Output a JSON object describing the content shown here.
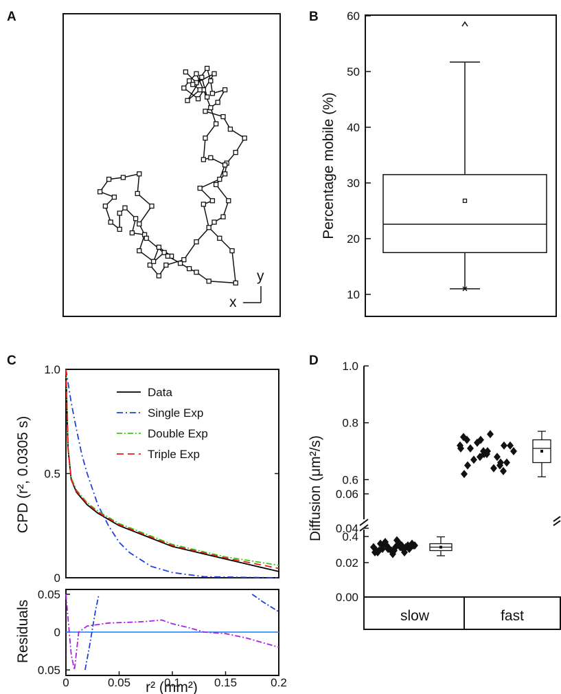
{
  "chart_data": [
    {
      "panel": "A",
      "type": "scatter",
      "scale_labels": {
        "x": "x",
        "y": "y"
      },
      "track": [
        [
          5.4,
          12.9
        ],
        [
          6.0,
          12.3
        ],
        [
          6.6,
          13.1
        ],
        [
          6.8,
          12.4
        ],
        [
          6.9,
          11.7
        ],
        [
          7.6,
          11.9
        ],
        [
          7.2,
          11.2
        ],
        [
          6.5,
          10.7
        ],
        [
          7.5,
          10.4
        ],
        [
          7.9,
          9.7
        ],
        [
          8.7,
          9.2
        ],
        [
          8.2,
          8.4
        ],
        [
          7.7,
          7.8
        ],
        [
          7.6,
          7.2
        ],
        [
          7.1,
          6.6
        ],
        [
          7.8,
          5.7
        ],
        [
          7.5,
          4.8
        ],
        [
          7.0,
          4.5
        ],
        [
          6.0,
          3.4
        ],
        [
          5.3,
          2.4
        ],
        [
          4.3,
          2.1
        ],
        [
          3.9,
          1.5
        ],
        [
          3.4,
          2.1
        ],
        [
          4.2,
          2.8
        ],
        [
          4.6,
          2.6
        ],
        [
          3.9,
          3.1
        ],
        [
          3.6,
          2.3
        ],
        [
          2.8,
          2.9
        ],
        [
          3.1,
          3.8
        ],
        [
          2.4,
          3.9
        ],
        [
          2.6,
          4.7
        ],
        [
          2.0,
          5.3
        ],
        [
          1.7,
          5.0
        ],
        [
          1.7,
          4.1
        ],
        [
          1.2,
          4.5
        ],
        [
          0.9,
          5.4
        ],
        [
          1.4,
          5.9
        ],
        [
          0.6,
          6.2
        ],
        [
          1.1,
          6.9
        ],
        [
          1.9,
          7.0
        ],
        [
          2.8,
          7.2
        ],
        [
          2.7,
          6.1
        ],
        [
          3.5,
          5.4
        ],
        [
          2.8,
          4.4
        ],
        [
          3.2,
          3.6
        ],
        [
          4.4,
          2.6
        ],
        [
          5.1,
          2.2
        ],
        [
          5.6,
          1.9
        ],
        [
          6.0,
          1.7
        ],
        [
          6.7,
          1.2
        ],
        [
          8.2,
          1.1
        ],
        [
          8.0,
          2.9
        ],
        [
          7.3,
          3.6
        ],
        [
          6.7,
          4.2
        ],
        [
          6.4,
          5.5
        ],
        [
          6.9,
          5.7
        ],
        [
          6.2,
          6.4
        ],
        [
          7.3,
          6.9
        ],
        [
          7.6,
          7.7
        ],
        [
          6.8,
          8.1
        ],
        [
          6.4,
          8.0
        ],
        [
          6.5,
          9.2
        ],
        [
          7.1,
          10.0
        ],
        [
          6.8,
          10.9
        ],
        [
          6.4,
          11.9
        ],
        [
          6.0,
          12.8
        ],
        [
          5.6,
          12.4
        ],
        [
          5.3,
          12.0
        ],
        [
          6.1,
          11.4
        ],
        [
          7.0,
          12.8
        ],
        [
          5.8,
          12.2
        ],
        [
          6.2,
          11.9
        ],
        [
          5.5,
          11.3
        ],
        [
          6.3,
          12.6
        ],
        [
          6.6,
          11.5
        ]
      ]
    },
    {
      "panel": "B",
      "type": "box",
      "ylabel": "Percentage mobile (%)",
      "ylim": [
        8,
        60
      ],
      "yticks": [
        10,
        20,
        30,
        40,
        50,
        60
      ],
      "box": {
        "whisker_low": 11.0,
        "q1": 17.5,
        "median": 22.6,
        "q3": 31.5,
        "whisker_high": 51.7,
        "mean": 26.8,
        "min": 11.0,
        "max": 58.5
      }
    },
    {
      "panel": "C",
      "type": "line",
      "ylabel": "CPD (r², 0.0305 s)",
      "residuals_ylabel": "Residuals",
      "xlabel": "r² (mm²)",
      "xlim": [
        0,
        0.2
      ],
      "ylim": [
        0,
        1.0
      ],
      "xticks": [
        "0",
        "0.05",
        "0.1",
        "0.15",
        "0.2"
      ],
      "yticks": [
        "0",
        "0.5",
        "1.0"
      ],
      "residual_yticks": [
        "0.05",
        "0",
        "0.05"
      ],
      "residual_ylim": [
        -0.05,
        0.05
      ],
      "series": [
        {
          "name": "Data",
          "color": "#000000",
          "x": [
            0,
            0.002,
            0.005,
            0.01,
            0.02,
            0.03,
            0.05,
            0.075,
            0.1,
            0.125,
            0.15,
            0.175,
            0.2
          ],
          "y": [
            1.0,
            0.62,
            0.47,
            0.41,
            0.35,
            0.31,
            0.25,
            0.2,
            0.15,
            0.12,
            0.09,
            0.06,
            0.03
          ]
        },
        {
          "name": "Single Exp",
          "color": "#1f3fdc",
          "x": [
            0,
            0.005,
            0.01,
            0.015,
            0.02,
            0.03,
            0.04,
            0.05,
            0.06,
            0.08,
            0.1,
            0.13,
            0.2
          ],
          "y": [
            1.0,
            0.84,
            0.71,
            0.59,
            0.5,
            0.35,
            0.25,
            0.17,
            0.12,
            0.055,
            0.025,
            0.005,
            0.0
          ]
        },
        {
          "name": "Double Exp",
          "color": "#33cc11",
          "x": [
            0,
            0.002,
            0.005,
            0.01,
            0.02,
            0.03,
            0.05,
            0.075,
            0.1,
            0.125,
            0.15,
            0.175,
            0.2
          ],
          "y": [
            1.0,
            0.63,
            0.48,
            0.42,
            0.36,
            0.32,
            0.26,
            0.21,
            0.16,
            0.13,
            0.1,
            0.08,
            0.06
          ]
        },
        {
          "name": "Triple Exp",
          "color": "#ee1a1a",
          "x": [
            0,
            0.002,
            0.005,
            0.01,
            0.02,
            0.03,
            0.05,
            0.075,
            0.1,
            0.125,
            0.15,
            0.175,
            0.2
          ],
          "y": [
            1.0,
            0.62,
            0.47,
            0.415,
            0.355,
            0.315,
            0.255,
            0.205,
            0.155,
            0.125,
            0.095,
            0.07,
            0.045
          ]
        }
      ],
      "residuals": [
        {
          "name": "Single Exp",
          "color": "#1f3fdc",
          "x": [
            0.018,
            0.022,
            0.028,
            0.031
          ],
          "y": [
            -0.05,
            -0.02,
            0.03,
            0.05
          ]
        },
        {
          "name": "Single Exp",
          "color": "#1f3fdc",
          "x": [
            0.175,
            0.185,
            0.2
          ],
          "y": [
            0.05,
            0.04,
            0.027
          ]
        },
        {
          "name": "Double Exp",
          "color": "#aa22dd",
          "x": [
            0,
            0.005,
            0.008,
            0.012,
            0.02,
            0.04,
            0.06,
            0.075,
            0.09,
            0.1,
            0.115,
            0.13,
            0.15,
            0.17,
            0.185,
            0.2
          ],
          "y": [
            0.05,
            -0.03,
            -0.05,
            0.0,
            0.008,
            0.012,
            0.013,
            0.014,
            0.016,
            0.011,
            0.006,
            0.0,
            -0.002,
            -0.008,
            -0.014,
            -0.02
          ]
        }
      ],
      "zero_line_color": "#2f8cff"
    },
    {
      "panel": "D",
      "type": "scatter",
      "ylabel": "Diffusion (μm²/s)",
      "categories": [
        "slow",
        "fast"
      ],
      "upper_yticks": [
        "0.4",
        "0.6",
        "0.8",
        "1.0"
      ],
      "lower_yticks": [
        "0.00",
        "0.02",
        "0.04",
        "0.06"
      ],
      "upper_ylim": [
        0.32,
        1.0
      ],
      "lower_ylim": [
        0.0,
        0.085
      ],
      "slow_points": [
        0.029,
        0.031,
        0.028,
        0.03,
        0.027,
        0.026,
        0.029,
        0.031,
        0.028,
        0.025,
        0.027,
        0.03,
        0.032,
        0.029,
        0.027,
        0.026,
        0.028,
        0.03,
        0.031,
        0.029,
        0.027,
        0.026,
        0.028,
        0.03,
        0.033,
        0.031,
        0.029,
        0.028,
        0.03,
        0.032
      ],
      "slow_box": {
        "whisker_low": 0.024,
        "q1": 0.027,
        "median": 0.029,
        "q3": 0.031,
        "whisker_high": 0.035,
        "mean": 0.029
      },
      "fast_points": [
        0.72,
        0.68,
        0.65,
        0.75,
        0.7,
        0.63,
        0.74,
        0.69,
        0.66,
        0.71,
        0.76,
        0.72,
        0.67,
        0.64,
        0.7,
        0.73,
        0.68,
        0.71,
        0.74,
        0.66,
        0.62,
        0.69,
        0.72,
        0.65,
        0.7
      ],
      "fast_box": {
        "whisker_low": 0.61,
        "q1": 0.66,
        "median": 0.71,
        "q3": 0.74,
        "whisker_high": 0.77,
        "mean": 0.7
      }
    }
  ],
  "panels": {
    "a": "A",
    "b": "B",
    "c": "C",
    "d": "D"
  },
  "colors": {
    "axis": "#111111"
  }
}
